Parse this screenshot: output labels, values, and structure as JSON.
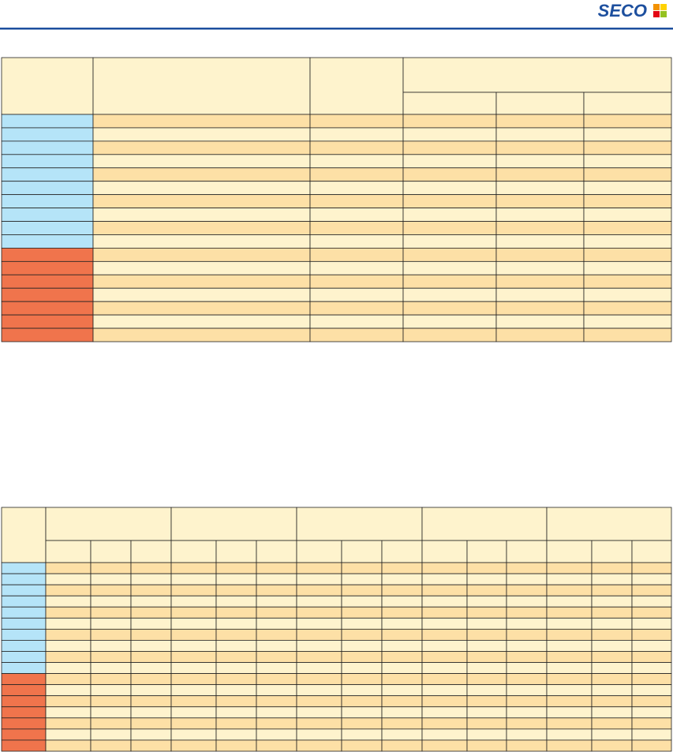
{
  "header": {
    "logo": "SECO"
  }
}
